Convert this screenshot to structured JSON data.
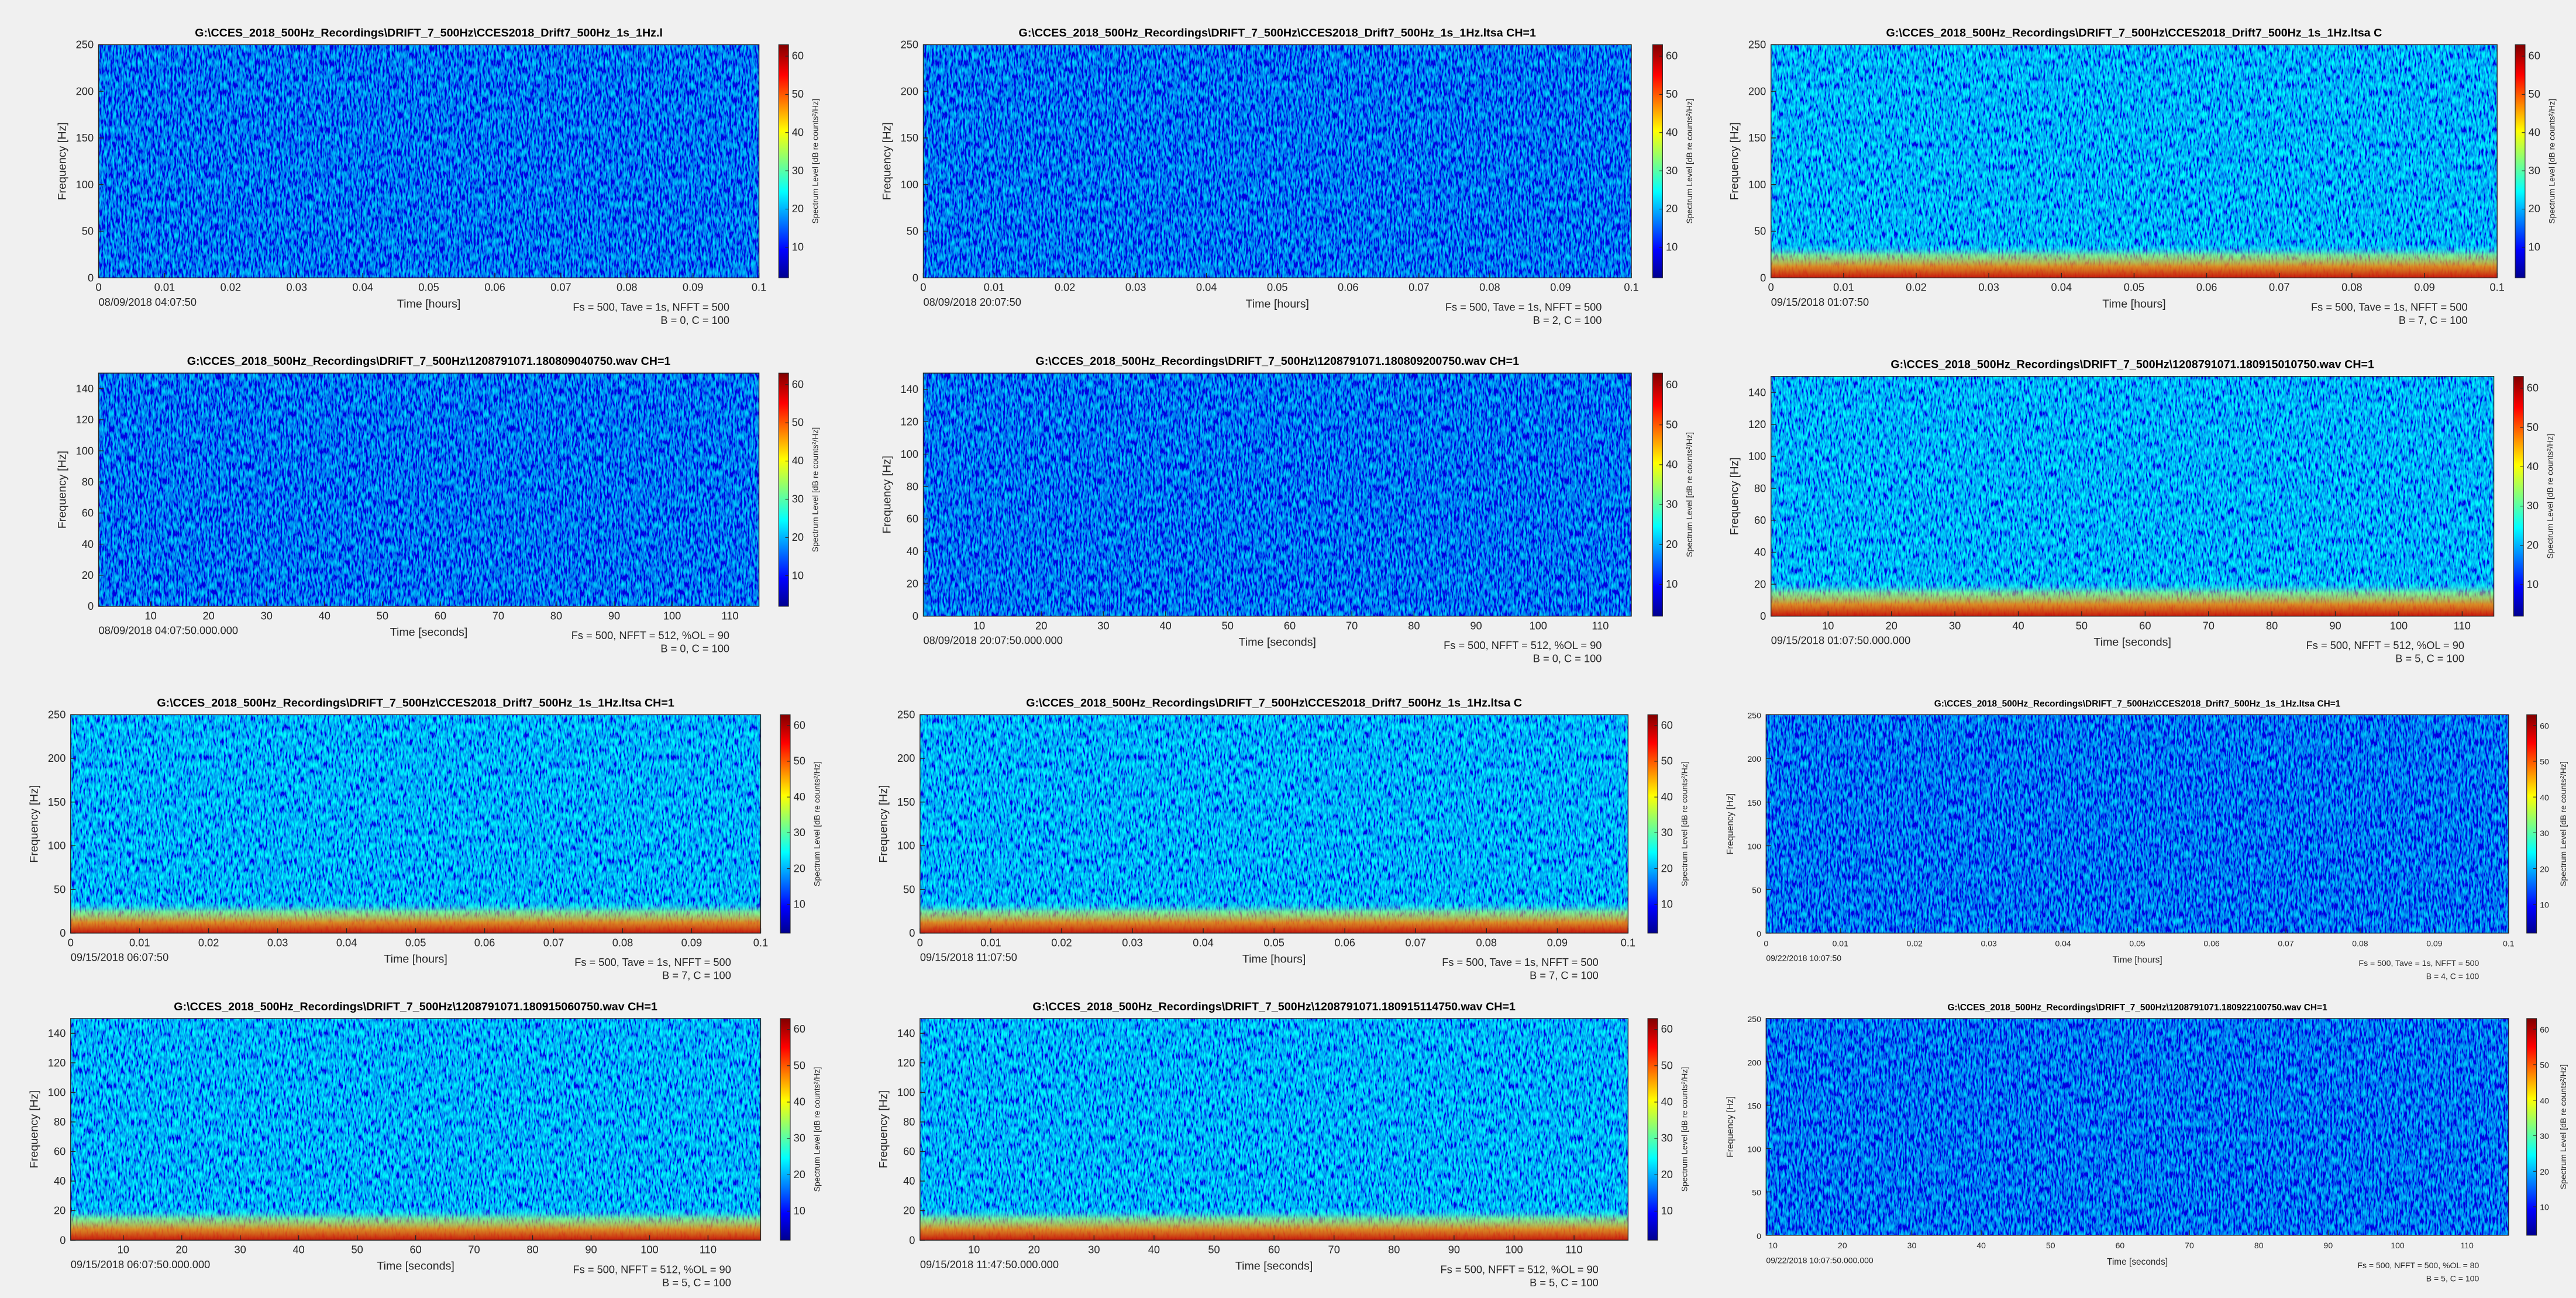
{
  "chart_data": [
    {
      "type": "spectrogram",
      "title": "G:\\CCES_2018_500Hz_Recordings\\DRIFT_7_500Hz\\CCES2018_Drift7_500Hz_1s_1Hz.l",
      "xlabel": "Time [hours]",
      "ylabel": "Frequency [Hz]",
      "xlim": [
        0,
        0.1
      ],
      "xticks": [
        0,
        0.01,
        0.02,
        0.03,
        0.04,
        0.05,
        0.06,
        0.07,
        0.08,
        0.09,
        0.1
      ],
      "ylim": [
        0,
        250
      ],
      "yticks": [
        0,
        50,
        100,
        150,
        200,
        250
      ],
      "colormap": "jet",
      "colorbar_label": "Spectrum Level [dB re counts²/Hz]",
      "clim": [
        2,
        63
      ],
      "cticks": [
        10,
        20,
        30,
        40,
        50,
        60
      ],
      "start_time": "08/09/2018 04:07:50",
      "annotations": [
        "Fs = 500, Tave = 1s, NFFT = 500",
        "B = 0, C = 100"
      ]
    },
    {
      "type": "spectrogram",
      "title": "G:\\CCES_2018_500Hz_Recordings\\DRIFT_7_500Hz\\CCES2018_Drift7_500Hz_1s_1Hz.ltsa CH=1",
      "xlabel": "Time [hours]",
      "ylabel": "Frequency [Hz]",
      "xlim": [
        0,
        0.1
      ],
      "xticks": [
        0,
        0.01,
        0.02,
        0.03,
        0.04,
        0.05,
        0.06,
        0.07,
        0.08,
        0.09,
        0.1
      ],
      "ylim": [
        0,
        250
      ],
      "yticks": [
        0,
        50,
        100,
        150,
        200,
        250
      ],
      "colormap": "jet",
      "colorbar_label": "Spectrum Level [dB re counts²/Hz]",
      "clim": [
        2,
        63
      ],
      "cticks": [
        10,
        20,
        30,
        40,
        50,
        60
      ],
      "start_time": "08/09/2018 20:07:50",
      "annotations": [
        "Fs = 500, Tave = 1s, NFFT = 500",
        "B = 2, C = 100"
      ]
    },
    {
      "type": "spectrogram",
      "title": "G:\\CCES_2018_500Hz_Recordings\\DRIFT_7_500Hz\\CCES2018_Drift7_500Hz_1s_1Hz.ltsa C",
      "xlabel": "Time [hours]",
      "ylabel": "Frequency [Hz]",
      "xlim": [
        0,
        0.1
      ],
      "xticks": [
        0,
        0.01,
        0.02,
        0.03,
        0.04,
        0.05,
        0.06,
        0.07,
        0.08,
        0.09,
        0.1
      ],
      "ylim": [
        0,
        250
      ],
      "yticks": [
        0,
        50,
        100,
        150,
        200,
        250
      ],
      "colormap": "jet",
      "colorbar_label": "Spectrum Level [dB re counts²/Hz]",
      "clim": [
        2,
        63
      ],
      "cticks": [
        10,
        20,
        30,
        40,
        50,
        60
      ],
      "start_time": "09/15/2018 01:07:50",
      "annotations": [
        "Fs = 500, Tave = 1s, NFFT = 500",
        "B = 7, C = 100"
      ]
    },
    {
      "type": "spectrogram",
      "title": "G:\\CCES_2018_500Hz_Recordings\\DRIFT_7_500Hz\\1208791071.180809040750.wav CH=1",
      "xlabel": "Time [seconds]",
      "ylabel": "Frequency [Hz]",
      "xlim": [
        1,
        115
      ],
      "xticks": [
        10,
        20,
        30,
        40,
        50,
        60,
        70,
        80,
        90,
        100,
        110
      ],
      "ylim": [
        0,
        150
      ],
      "yticks": [
        0,
        20,
        40,
        60,
        80,
        100,
        120,
        140
      ],
      "colormap": "jet",
      "colorbar_label": "Spectrum Level [dB re counts²/Hz]",
      "clim": [
        2,
        63
      ],
      "cticks": [
        10,
        20,
        30,
        40,
        50,
        60
      ],
      "start_time": "08/09/2018 04:07:50.000.000",
      "annotations": [
        "Fs = 500, NFFT = 512, %OL = 90",
        "B = 0, C = 100"
      ]
    },
    {
      "type": "spectrogram",
      "title": "G:\\CCES_2018_500Hz_Recordings\\DRIFT_7_500Hz\\1208791071.180809200750.wav CH=1",
      "xlabel": "Time [seconds]",
      "ylabel": "Frequency [Hz]",
      "xlim": [
        1,
        115
      ],
      "xticks": [
        10,
        20,
        30,
        40,
        50,
        60,
        70,
        80,
        90,
        100,
        110
      ],
      "ylim": [
        0,
        150
      ],
      "yticks": [
        0,
        20,
        40,
        60,
        80,
        100,
        120,
        140
      ],
      "colormap": "jet",
      "colorbar_label": "Spectrum Level [dB re counts²/Hz]",
      "clim": [
        2,
        63
      ],
      "cticks": [
        10,
        20,
        30,
        40,
        50,
        60
      ],
      "start_time": "08/09/2018 20:07:50.000.000",
      "annotations": [
        "Fs = 500, NFFT = 512, %OL = 90",
        "B = 0, C = 100"
      ]
    },
    {
      "type": "spectrogram",
      "title": "G:\\CCES_2018_500Hz_Recordings\\DRIFT_7_500Hz\\1208791071.180915010750.wav CH=1",
      "xlabel": "Time [seconds]",
      "ylabel": "Frequency [Hz]",
      "xlim": [
        1,
        115
      ],
      "xticks": [
        10,
        20,
        30,
        40,
        50,
        60,
        70,
        80,
        90,
        100,
        110
      ],
      "ylim": [
        0,
        150
      ],
      "yticks": [
        0,
        20,
        40,
        60,
        80,
        100,
        120,
        140
      ],
      "colormap": "jet",
      "colorbar_label": "Spectrum Level [dB re counts²/Hz]",
      "clim": [
        2,
        63
      ],
      "cticks": [
        10,
        20,
        30,
        40,
        50,
        60
      ],
      "start_time": "09/15/2018 01:07:50.000.000",
      "annotations": [
        "Fs = 500, NFFT = 512, %OL = 90",
        "B = 5, C = 100"
      ]
    },
    {
      "type": "spectrogram",
      "title": "G:\\CCES_2018_500Hz_Recordings\\DRIFT_7_500Hz\\CCES2018_Drift7_500Hz_1s_1Hz.ltsa CH=1",
      "xlabel": "Time [hours]",
      "ylabel": "Frequency [Hz]",
      "xlim": [
        0,
        0.1
      ],
      "xticks": [
        0,
        0.01,
        0.02,
        0.03,
        0.04,
        0.05,
        0.06,
        0.07,
        0.08,
        0.09,
        0.1
      ],
      "ylim": [
        0,
        250
      ],
      "yticks": [
        0,
        50,
        100,
        150,
        200,
        250
      ],
      "colormap": "jet",
      "colorbar_label": "Spectrum Level [dB re counts²/Hz]",
      "clim": [
        2,
        63
      ],
      "cticks": [
        10,
        20,
        30,
        40,
        50,
        60
      ],
      "start_time": "09/15/2018 06:07:50",
      "annotations": [
        "Fs = 500, Tave = 1s, NFFT = 500",
        "B = 7, C = 100"
      ]
    },
    {
      "type": "spectrogram",
      "title": "G:\\CCES_2018_500Hz_Recordings\\DRIFT_7_500Hz\\CCES2018_Drift7_500Hz_1s_1Hz.ltsa C",
      "xlabel": "Time [hours]",
      "ylabel": "Frequency [Hz]",
      "xlim": [
        0,
        0.1
      ],
      "xticks": [
        0,
        0.01,
        0.02,
        0.03,
        0.04,
        0.05,
        0.06,
        0.07,
        0.08,
        0.09,
        0.1
      ],
      "ylim": [
        0,
        250
      ],
      "yticks": [
        0,
        50,
        100,
        150,
        200,
        250
      ],
      "colormap": "jet",
      "colorbar_label": "Spectrum Level [dB re counts²/Hz]",
      "clim": [
        2,
        63
      ],
      "cticks": [
        10,
        20,
        30,
        40,
        50,
        60
      ],
      "start_time": "09/15/2018 11:07:50",
      "annotations": [
        "Fs = 500, Tave = 1s, NFFT = 500",
        "B = 7, C = 100"
      ]
    },
    {
      "type": "spectrogram",
      "title": "G:\\CCES_2018_500Hz_Recordings\\DRIFT_7_500Hz\\CCES2018_Drift7_500Hz_1s_1Hz.ltsa CH=1",
      "xlabel": "Time [hours]",
      "ylabel": "Frequency [Hz]",
      "xlim": [
        0,
        0.1
      ],
      "xticks": [
        0,
        0.01,
        0.02,
        0.03,
        0.04,
        0.05,
        0.06,
        0.07,
        0.08,
        0.09,
        0.1
      ],
      "ylim": [
        0,
        250
      ],
      "yticks": [
        0,
        50,
        100,
        150,
        200,
        250
      ],
      "colormap": "jet",
      "colorbar_label": "Spectrum Level [dB re counts²/Hz]",
      "clim": [
        2,
        63
      ],
      "cticks": [
        10,
        20,
        30,
        40,
        50,
        60
      ],
      "start_time": "09/22/2018 10:07:50",
      "annotations": [
        "Fs = 500, Tave = 1s, NFFT = 500",
        "B = 4, C = 100"
      ]
    },
    {
      "type": "spectrogram",
      "title": "G:\\CCES_2018_500Hz_Recordings\\DRIFT_7_500Hz\\1208791071.180915060750.wav CH=1",
      "xlabel": "Time [seconds]",
      "ylabel": "Frequency [Hz]",
      "xlim": [
        1,
        119
      ],
      "xticks": [
        10,
        20,
        30,
        40,
        50,
        60,
        70,
        80,
        90,
        100,
        110
      ],
      "ylim": [
        0,
        150
      ],
      "yticks": [
        0,
        20,
        40,
        60,
        80,
        100,
        120,
        140
      ],
      "colormap": "jet",
      "colorbar_label": "Spectrum Level [dB re counts²/Hz]",
      "clim": [
        2,
        63
      ],
      "cticks": [
        10,
        20,
        30,
        40,
        50,
        60
      ],
      "start_time": "09/15/2018 06:07:50.000.000",
      "annotations": [
        "Fs = 500, NFFT = 512, %OL = 90",
        "B = 5, C = 100"
      ]
    },
    {
      "type": "spectrogram",
      "title": "G:\\CCES_2018_500Hz_Recordings\\DRIFT_7_500Hz\\1208791071.180915114750.wav CH=1",
      "xlabel": "Time [seconds]",
      "ylabel": "Frequency [Hz]",
      "xlim": [
        1,
        119
      ],
      "xticks": [
        10,
        20,
        30,
        40,
        50,
        60,
        70,
        80,
        90,
        100,
        110
      ],
      "ylim": [
        0,
        150
      ],
      "yticks": [
        0,
        20,
        40,
        60,
        80,
        100,
        120,
        140
      ],
      "colormap": "jet",
      "colorbar_label": "Spectrum Level [dB re counts²/Hz]",
      "clim": [
        2,
        63
      ],
      "cticks": [
        10,
        20,
        30,
        40,
        50,
        60
      ],
      "start_time": "09/15/2018 11:47:50.000.000",
      "annotations": [
        "Fs = 500, NFFT = 512, %OL = 90",
        "B = 5, C = 100"
      ]
    },
    {
      "type": "spectrogram",
      "title": "G:\\CCES_2018_500Hz_Recordings\\DRIFT_7_500Hz\\1208791071.180922100750.wav CH=1",
      "xlabel": "Time [seconds]",
      "ylabel": "Frequency [Hz]",
      "xlim": [
        9,
        116
      ],
      "xticks": [
        10,
        20,
        30,
        40,
        50,
        60,
        70,
        80,
        90,
        100,
        110
      ],
      "ylim": [
        0,
        250
      ],
      "yticks": [
        0,
        50,
        100,
        150,
        200,
        250
      ],
      "colormap": "jet",
      "colorbar_label": "Spectrum Level [dB re counts²/Hz]",
      "clim": [
        2,
        63
      ],
      "cticks": [
        10,
        20,
        30,
        40,
        50,
        60
      ],
      "start_time": "09/22/2018 10:07:50.000.000",
      "annotations": [
        "Fs = 500, NFFT = 500, %OL = 80",
        "B = 5, C = 100"
      ]
    }
  ]
}
